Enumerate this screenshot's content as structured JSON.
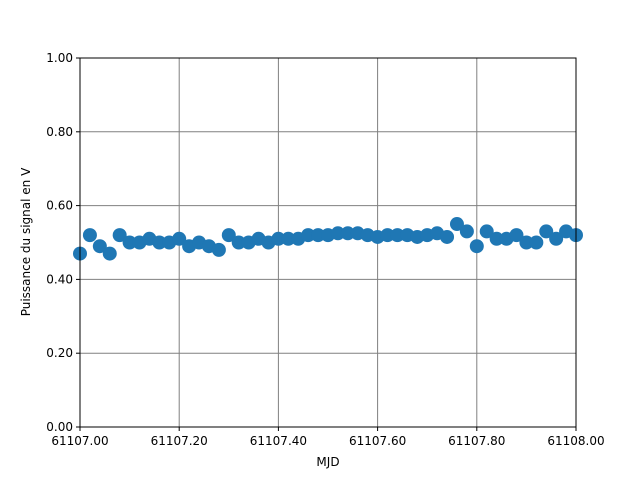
{
  "chart_data": {
    "type": "scatter",
    "x_label": "MJD",
    "y_label": "Puissance du signal en V",
    "grid": true,
    "grid_color": "#808080",
    "xlim": [
      61107.0,
      61108.0
    ],
    "ylim": [
      0.0,
      1.0
    ],
    "xticks": [
      {
        "value": 61107.0,
        "label": "61107.00"
      },
      {
        "value": 61107.2,
        "label": "61107.20"
      },
      {
        "value": 61107.4,
        "label": "61107.40"
      },
      {
        "value": 61107.6,
        "label": "61107.60"
      },
      {
        "value": 61107.8,
        "label": "61107.80"
      },
      {
        "value": 61108.0,
        "label": "61108.00"
      }
    ],
    "yticks": [
      {
        "value": 0.0,
        "label": "0.00"
      },
      {
        "value": 0.2,
        "label": "0.20"
      },
      {
        "value": 0.4,
        "label": "0.40"
      },
      {
        "value": 0.6,
        "label": "0.60"
      },
      {
        "value": 0.8,
        "label": "0.80"
      },
      {
        "value": 1.0,
        "label": "1.00"
      }
    ],
    "x": [
      61107.0,
      61107.02,
      61107.04,
      61107.06,
      61107.08,
      61107.1,
      61107.12,
      61107.14,
      61107.16,
      61107.18,
      61107.2,
      61107.22,
      61107.24,
      61107.26,
      61107.28,
      61107.3,
      61107.32,
      61107.34,
      61107.36,
      61107.38,
      61107.4,
      61107.42,
      61107.44,
      61107.46,
      61107.48,
      61107.5,
      61107.52,
      61107.54,
      61107.56,
      61107.58,
      61107.6,
      61107.62,
      61107.64,
      61107.66,
      61107.68,
      61107.7,
      61107.72,
      61107.74,
      61107.76,
      61107.78,
      61107.8,
      61107.82,
      61107.84,
      61107.86,
      61107.88,
      61107.9,
      61107.92,
      61107.94,
      61107.96,
      61107.98,
      61108.0
    ],
    "series": [
      {
        "color": "#1f77b4",
        "values": [
          0.47,
          0.52,
          0.49,
          0.47,
          0.52,
          0.5,
          0.5,
          0.51,
          0.5,
          0.5,
          0.51,
          0.49,
          0.5,
          0.49,
          0.48,
          0.52,
          0.5,
          0.5,
          0.51,
          0.5,
          0.51,
          0.51,
          0.51,
          0.52,
          0.52,
          0.52,
          0.525,
          0.525,
          0.525,
          0.52,
          0.515,
          0.52,
          0.52,
          0.52,
          0.515,
          0.52,
          0.525,
          0.515,
          0.55,
          0.53,
          0.49,
          0.53,
          0.51,
          0.51,
          0.52,
          0.5,
          0.5,
          0.53,
          0.51,
          0.53,
          0.52
        ]
      }
    ]
  }
}
